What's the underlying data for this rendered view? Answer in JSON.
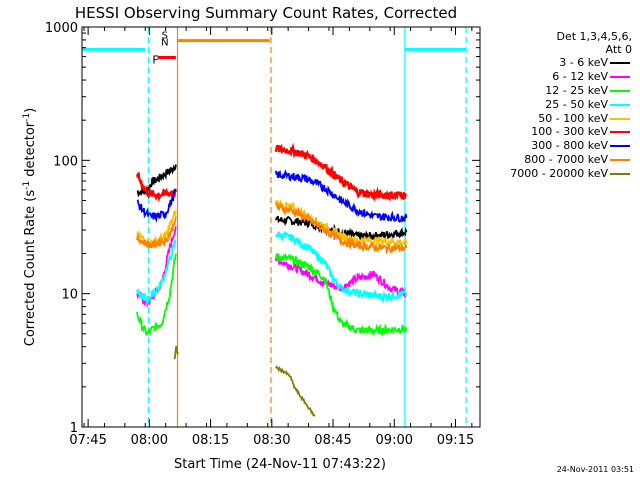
{
  "chart_data": {
    "type": "line",
    "title": "HESSI Observing Summary Count Rates, Corrected",
    "xlabel": "Start Time (24-Nov-11 07:43:22)",
    "ylabel_main": "Corrected Count Rate (s",
    "ylabel_sup1": "-1",
    "ylabel_mid": " detector",
    "ylabel_sup2": "-1",
    "ylabel_end": ")",
    "yscale": "log",
    "ylim": [
      1,
      1000
    ],
    "xlim": [
      -1.5,
      96
    ],
    "x_unit": "minutes after 07:45",
    "xticks": [
      {
        "v": 0,
        "label": "07:45"
      },
      {
        "v": 15,
        "label": "08:00"
      },
      {
        "v": 30,
        "label": "08:15"
      },
      {
        "v": 45,
        "label": "08:30"
      },
      {
        "v": 60,
        "label": "08:45"
      },
      {
        "v": 75,
        "label": "09:00"
      },
      {
        "v": 90,
        "label": "09:15"
      }
    ],
    "yticks": [
      {
        "v": 1,
        "label": "1"
      },
      {
        "v": 10,
        "label": "10"
      },
      {
        "v": 100,
        "label": "100"
      },
      {
        "v": 1000,
        "label": "1000"
      }
    ],
    "legend_title_1": "Det 1,3,4,5,6,",
    "legend_title_2": "Att 0",
    "series": [
      {
        "name": "3 - 6 keV",
        "color": "#000000",
        "segments": [
          [
            [
              12,
              58
            ],
            [
              13.5,
              58
            ],
            [
              14.5,
              60
            ],
            [
              15.5,
              68
            ],
            [
              17,
              72
            ],
            [
              19,
              80
            ],
            [
              20.5,
              85
            ],
            [
              21.5,
              93
            ]
          ],
          [
            [
              46,
              36
            ],
            [
              50,
              35
            ],
            [
              54,
              34
            ],
            [
              58,
              31
            ],
            [
              62,
              29
            ],
            [
              66,
              27
            ],
            [
              70,
              27
            ],
            [
              74,
              28
            ],
            [
              78,
              29
            ]
          ]
        ]
      },
      {
        "name": "6 - 12 keV",
        "color": "#ff00ff",
        "segments": [
          [
            [
              12,
              10
            ],
            [
              13.5,
              9
            ],
            [
              14.5,
              8.5
            ],
            [
              16,
              9.5
            ],
            [
              18,
              12
            ],
            [
              20,
              22
            ],
            [
              21.5,
              32
            ]
          ],
          [
            [
              46,
              18
            ],
            [
              50,
              16
            ],
            [
              54,
              14
            ],
            [
              58,
              12
            ],
            [
              62,
              11
            ],
            [
              66,
              13
            ],
            [
              70,
              14
            ],
            [
              74,
              11
            ],
            [
              78,
              10
            ]
          ]
        ]
      },
      {
        "name": "12 - 25 keV",
        "color": "#00ff00",
        "segments": [
          [
            [
              12,
              7
            ],
            [
              13.5,
              5.5
            ],
            [
              14.5,
              5
            ],
            [
              16,
              5.5
            ],
            [
              18,
              6
            ],
            [
              20,
              10
            ],
            [
              21.5,
              20
            ]
          ],
          [
            [
              46,
              19
            ],
            [
              50,
              18
            ],
            [
              54,
              16
            ],
            [
              58,
              13
            ],
            [
              60,
              8
            ],
            [
              62,
              6
            ],
            [
              66,
              5.3
            ],
            [
              72,
              5.3
            ],
            [
              78,
              5.5
            ]
          ]
        ]
      },
      {
        "name": "25 - 50 keV",
        "color": "#00ffff",
        "segments": [
          [
            [
              12,
              10
            ],
            [
              13.5,
              9.5
            ],
            [
              14.5,
              9
            ],
            [
              16,
              10
            ],
            [
              18,
              12
            ],
            [
              20,
              18
            ],
            [
              21.5,
              25
            ]
          ],
          [
            [
              46,
              28
            ],
            [
              50,
              26
            ],
            [
              54,
              22
            ],
            [
              58,
              17
            ],
            [
              60,
              13
            ],
            [
              62,
              11
            ],
            [
              66,
              10
            ],
            [
              72,
              9.5
            ],
            [
              78,
              10
            ]
          ]
        ]
      },
      {
        "name": "50 - 100 keV",
        "color": "#ffc000",
        "segments": [
          [
            [
              12,
              28
            ],
            [
              14,
              25
            ],
            [
              15.5,
              24
            ],
            [
              17,
              25
            ],
            [
              19,
              27
            ],
            [
              20.5,
              35
            ],
            [
              21.5,
              42
            ]
          ],
          [
            [
              46,
              48
            ],
            [
              50,
              44
            ],
            [
              54,
              38
            ],
            [
              58,
              32
            ],
            [
              62,
              27
            ],
            [
              66,
              25
            ],
            [
              72,
              25
            ],
            [
              78,
              24
            ]
          ]
        ]
      },
      {
        "name": "100 - 300 keV",
        "color": "#ff0000",
        "segments": [
          [
            [
              12,
              80
            ],
            [
              13,
              68
            ],
            [
              14,
              60
            ],
            [
              15,
              56
            ],
            [
              17,
              55
            ],
            [
              19,
              56
            ],
            [
              20.5,
              57
            ],
            [
              21.5,
              58
            ]
          ],
          [
            [
              46,
              122
            ],
            [
              50,
              118
            ],
            [
              54,
              108
            ],
            [
              58,
              90
            ],
            [
              62,
              70
            ],
            [
              66,
              58
            ],
            [
              70,
              55
            ],
            [
              78,
              55
            ]
          ]
        ]
      },
      {
        "name": "300 - 800 keV",
        "color": "#0000ff",
        "segments": [
          [
            [
              12,
              48
            ],
            [
              13.5,
              42
            ],
            [
              15,
              38
            ],
            [
              17,
              38
            ],
            [
              19,
              40
            ],
            [
              20.5,
              50
            ],
            [
              21.5,
              60
            ]
          ],
          [
            [
              46,
              78
            ],
            [
              50,
              76
            ],
            [
              54,
              72
            ],
            [
              58,
              62
            ],
            [
              62,
              50
            ],
            [
              66,
              42
            ],
            [
              70,
              38
            ],
            [
              78,
              37
            ]
          ]
        ]
      },
      {
        "name": "800 - 7000 keV",
        "color": "#ff8000",
        "segments": [
          [
            [
              12,
              26
            ],
            [
              14,
              24
            ],
            [
              15.5,
              23
            ],
            [
              17,
              24
            ],
            [
              19,
              25
            ],
            [
              20.5,
              30
            ],
            [
              21.5,
              38
            ]
          ],
          [
            [
              46,
              45
            ],
            [
              50,
              42
            ],
            [
              54,
              36
            ],
            [
              58,
              30
            ],
            [
              62,
              25
            ],
            [
              66,
              23
            ],
            [
              72,
              22
            ],
            [
              78,
              22
            ]
          ]
        ]
      },
      {
        "name": "7000 - 20000 keV",
        "color": "#808000",
        "segments": [
          [
            [
              21.2,
              3.2
            ],
            [
              21.6,
              4
            ],
            [
              22,
              3.5
            ]
          ],
          [
            [
              46,
              2.8
            ],
            [
              48,
              2.6
            ],
            [
              49.5,
              2.4
            ],
            [
              50.5,
              2.0
            ],
            [
              52,
              1.7
            ],
            [
              54,
              1.4
            ],
            [
              55.5,
              1.2
            ]
          ]
        ]
      }
    ],
    "annotations": [
      {
        "text": "F",
        "color": "#ff0000"
      },
      {
        "text": "S",
        "color": "#ff8000"
      },
      {
        "text": "N",
        "color": "#00c0c0"
      }
    ],
    "flag_bars": [
      {
        "color": "#00ffff",
        "x0": -1.5,
        "x1": 14,
        "y": 680
      },
      {
        "color": "#00ffff",
        "x0": 77.5,
        "x1": 92.5,
        "y": 680
      },
      {
        "color": "#ff0000",
        "x0": 17,
        "x1": 21.5,
        "y": 590
      },
      {
        "color": "#ff8000",
        "x0": 22,
        "x1": 44.5,
        "y": 790
      }
    ],
    "vlines": [
      {
        "x": 14.8,
        "color": "#00ffff",
        "dash": true
      },
      {
        "x": 21.9,
        "color": "#ff8000",
        "dash": false
      },
      {
        "x": 44.8,
        "color": "#ff8000",
        "dash": true
      },
      {
        "x": 77.6,
        "color": "#00ffff",
        "dash": false
      },
      {
        "x": 92.6,
        "color": "#00ffff",
        "dash": true
      }
    ]
  },
  "timestamp": "24-Nov-2011 03:51"
}
